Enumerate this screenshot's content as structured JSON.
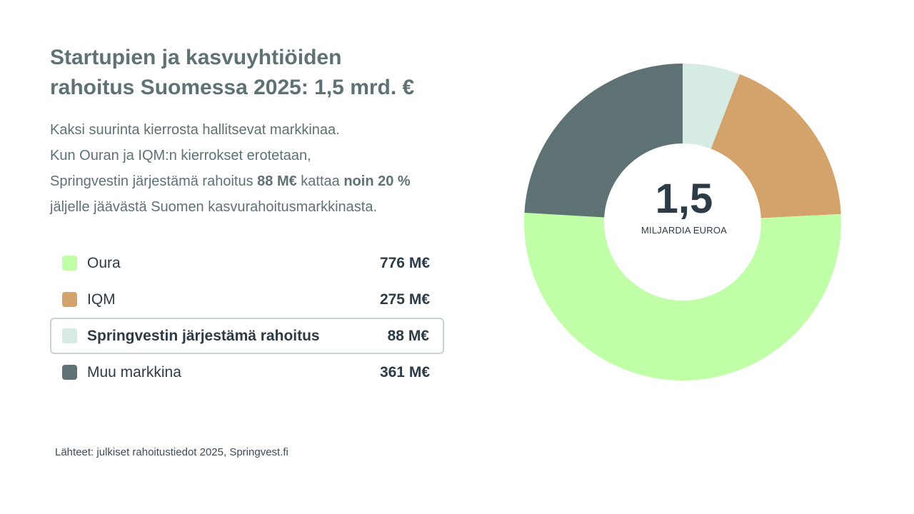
{
  "title": {
    "line1": "Startupien ja kasvuyhtiöiden",
    "line2": "rahoitus Suomessa 2025: 1,5 mrd. €"
  },
  "description": {
    "line1": "Kaksi suurinta kierrosta hallitsevat markkinaa.",
    "line2": "Kun Ouran ja IQM:n kierrokset erotetaan,",
    "line3_pre": "Springvestin järjestämä rahoitus ",
    "line3_bold1": "88 M€",
    "line3_mid": " kattaa ",
    "line3_bold2": "noin 20 %",
    "line4": "jäljelle jäävästä Suomen kasvurahoitusmarkkinasta."
  },
  "legend": [
    {
      "label": "Oura",
      "value": "776 M€",
      "color": "#c0ffa8"
    },
    {
      "label": "IQM",
      "value": "275 M€",
      "color": "#d4a36c"
    },
    {
      "label": "Springvestin järjestämä rahoitus",
      "value": "88 M€",
      "color": "#d7ebe5"
    },
    {
      "label": "Muu markkina",
      "value": "361 M€",
      "color": "#5e7274"
    }
  ],
  "center": {
    "value": "1,5",
    "unit": "MILJARDIA EUROA"
  },
  "source": "Lähteet: julkiset rahoitustiedot 2025, Springvest.fi",
  "chart_data": {
    "type": "pie",
    "donut": true,
    "categories": [
      "Springvestin järjestämä rahoitus",
      "IQM",
      "Oura",
      "Muu markkina"
    ],
    "values": [
      88,
      275,
      776,
      361
    ],
    "colors": [
      "#d7ebe5",
      "#d4a36c",
      "#c0ffa8",
      "#5e7274"
    ],
    "unit": "M€"
  }
}
